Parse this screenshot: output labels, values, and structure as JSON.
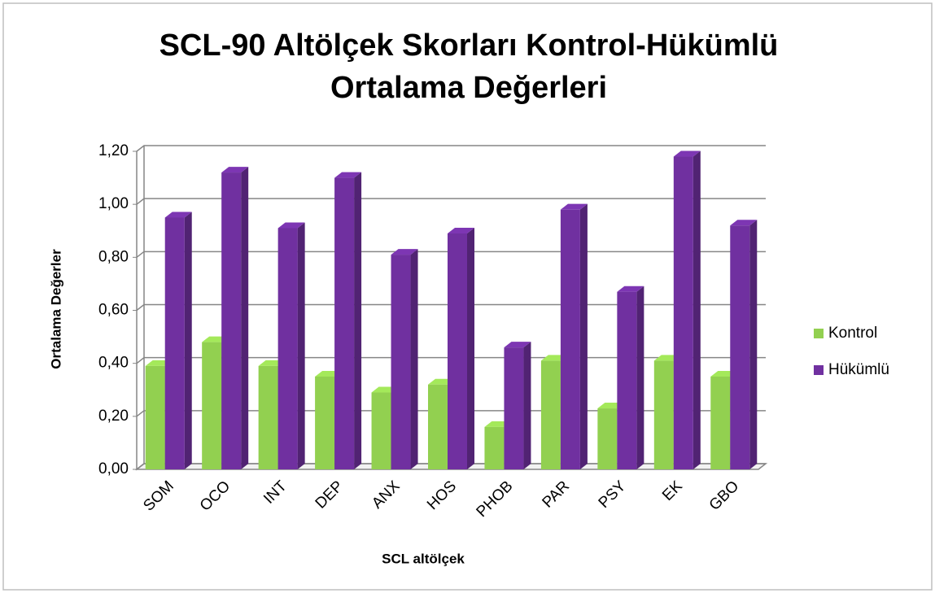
{
  "chart_data": {
    "type": "bar",
    "title": "SCL-90 Altölçek Skorları Kontrol-Hükümlü",
    "subtitle": "Ortalama Değerleri",
    "x_label": "SCL altölçek",
    "y_label": "Ortalama Değerler",
    "categories": [
      "SOM",
      "OCO",
      "INT",
      "DEP",
      "ANX",
      "HOS",
      "PHOB",
      "PAR",
      "PSY",
      "EK",
      "GBO"
    ],
    "series": [
      {
        "name": "Kontrol",
        "color": "#92d050",
        "values": [
          0.39,
          0.48,
          0.39,
          0.35,
          0.29,
          0.32,
          0.16,
          0.41,
          0.23,
          0.41,
          0.35
        ]
      },
      {
        "name": "Hükümlü",
        "color": "#7030a0",
        "values": [
          0.95,
          1.12,
          0.91,
          1.1,
          0.81,
          0.89,
          0.46,
          0.98,
          0.67,
          1.18,
          0.92
        ]
      }
    ],
    "ylim": [
      0,
      1.2
    ],
    "yticks": [
      {
        "value": 0,
        "label": "0,00"
      },
      {
        "value": 0.2,
        "label": "0,20"
      },
      {
        "value": 0.4,
        "label": "0,40"
      },
      {
        "value": 0.6,
        "label": "0,60"
      },
      {
        "value": 0.8,
        "label": "0,80"
      },
      {
        "value": 1.0,
        "label": "1,00"
      },
      {
        "value": 1.2,
        "label": "1,20"
      }
    ],
    "grid": true,
    "legend": "right"
  }
}
